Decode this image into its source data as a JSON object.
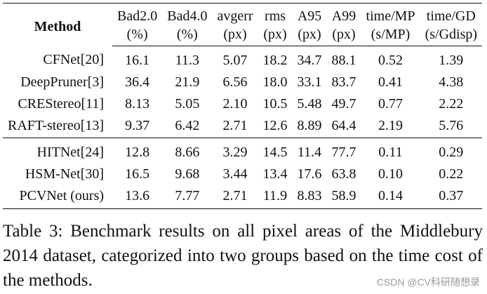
{
  "table": {
    "headers": [
      {
        "top": "Method",
        "unit": ""
      },
      {
        "top": "Bad2.0",
        "unit": "(%)"
      },
      {
        "top": "Bad4.0",
        "unit": "(%)"
      },
      {
        "top": "avgerr",
        "unit": "(px)"
      },
      {
        "top": "rms",
        "unit": "(px)"
      },
      {
        "top": "A95",
        "unit": "(px)"
      },
      {
        "top": "A99",
        "unit": "(px)"
      },
      {
        "top": "time/MP",
        "unit": "(s/MP)"
      },
      {
        "top": "time/GD",
        "unit": "(s/Gdisp)"
      }
    ],
    "groups": [
      {
        "rows": [
          {
            "method": "CFNet[20]",
            "values": [
              "16.1",
              "11.3",
              "5.07",
              "18.2",
              "34.7",
              "88.1",
              "0.52",
              "1.39"
            ]
          },
          {
            "method": "DeepPruner[3]",
            "values": [
              "36.4",
              "21.9",
              "6.56",
              "18.0",
              "33.1",
              "83.7",
              "0.41",
              "4.38"
            ]
          },
          {
            "method": "CREStereo[11]",
            "values": [
              "8.13",
              "5.05",
              "2.10",
              "10.5",
              "5.48",
              "49.7",
              "0.77",
              "2.22"
            ]
          },
          {
            "method": "RAFT-stereo[13]",
            "values": [
              "9.37",
              "6.42",
              "2.71",
              "12.6",
              "8.89",
              "64.4",
              "2.19",
              "5.76"
            ]
          }
        ]
      },
      {
        "rows": [
          {
            "method": "HITNet[24]",
            "values": [
              "12.8",
              "8.66",
              "3.29",
              "14.5",
              "11.4",
              "77.7",
              "0.11",
              "0.29"
            ]
          },
          {
            "method": "HSM-Net[30]",
            "values": [
              "16.5",
              "9.68",
              "3.44",
              "13.4",
              "17.6",
              "63.8",
              "0.10",
              "0.22"
            ]
          },
          {
            "method": "PCVNet (ours)",
            "values": [
              "13.6",
              "7.77",
              "2.71",
              "11.9",
              "8.83",
              "58.9",
              "0.14",
              "0.37"
            ]
          }
        ]
      }
    ]
  },
  "caption": "Table 3: Benchmark results on all pixel areas of the Middlebury 2014 dataset, categorized into two groups based on the time cost of the methods.",
  "watermark": "CSDN @CV科研随想录"
}
